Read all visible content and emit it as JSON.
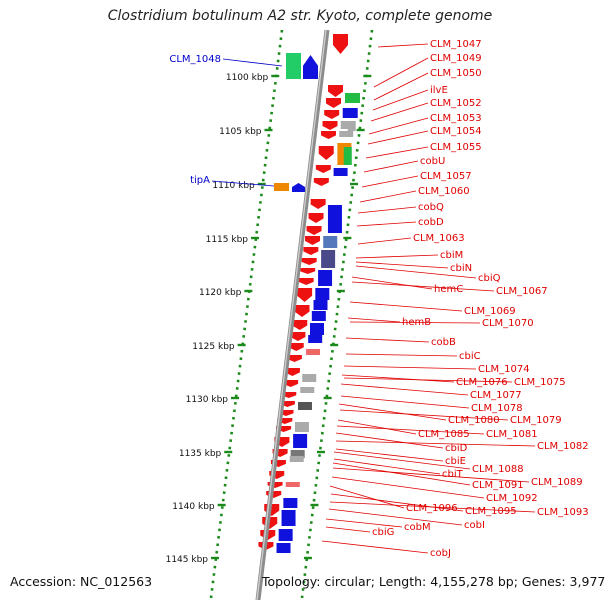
{
  "title": "Clostridium botulinum A2 str. Kyoto, complete genome",
  "footer": {
    "accession": "Accession: NC_012563",
    "summary": "Topology: circular; Length: 4,155,278 bp; Genes: 3,977"
  },
  "colors": {
    "red_label": "#e00000",
    "blue_label": "#0000cc",
    "backbone": "#8c8c8c",
    "ruler": "#1a8a1a"
  },
  "ruler": {
    "unit": "kbp",
    "ticks": [
      "1100 kbp",
      "1105 kbp",
      "1110 kbp",
      "1115 kbp",
      "1120 kbp",
      "1125 kbp",
      "1130 kbp",
      "1135 kbp",
      "1140 kbp",
      "1145 kbp"
    ]
  },
  "left_labels": [
    "CLM_1048",
    "tipA"
  ],
  "right_labels": [
    "CLM_1047",
    "CLM_1049",
    "CLM_1050",
    "ilvE",
    "CLM_1052",
    "CLM_1053",
    "CLM_1054",
    "CLM_1055",
    "cobU",
    "CLM_1057",
    "CLM_1060",
    "cobQ",
    "cobD",
    "CLM_1063",
    "cbiM",
    "cbiN",
    "cbiQ",
    "hemC",
    "CLM_1067",
    "CLM_1069",
    "hemB",
    "CLM_1070",
    "cobB",
    "cbiC",
    "CLM_1074",
    "CLM_1076",
    "CLM_1075",
    "CLM_1077",
    "CLM_1078",
    "CLM_1080",
    "CLM_1079",
    "CLM_1085",
    "CLM_1081",
    "cbiD",
    "CLM_1082",
    "cbiE",
    "CLM_1088",
    "cbiT",
    "CLM_1091",
    "CLM_1089",
    "CLM_1092",
    "CLM_1096",
    "CLM_1095",
    "CLM_1093",
    "cobI",
    "cobM",
    "cbiG",
    "cobJ"
  ]
}
